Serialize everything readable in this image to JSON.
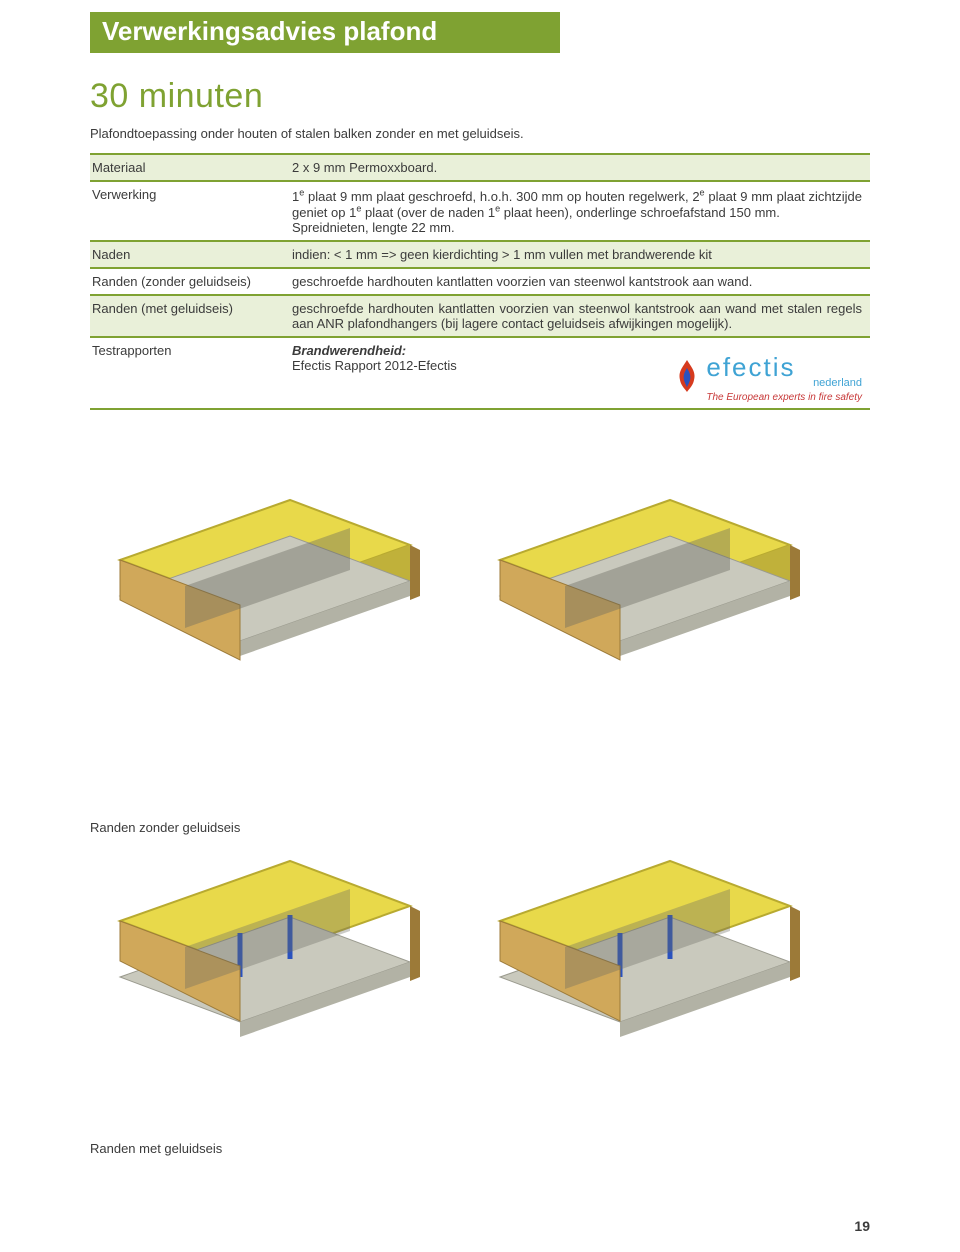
{
  "banner": "Verwerkingsadvies plafond",
  "heading": "30 minuten",
  "intro": "Plafondtoepassing onder houten of stalen balken zonder en met geluidseis.",
  "table": {
    "rows": [
      {
        "k": "Materiaal",
        "v": "2 x 9 mm Permoxxboard.",
        "hl": true
      },
      {
        "k": "Verwerking",
        "v": "1ᵉ plaat 9 mm plaat geschroefd, h.o.h. 300 mm op houten regelwerk, 2ᵉ plaat 9 mm plaat zichtzijde geniet op 1ᵉ plaat (over de naden 1ᵉ plaat heen), onderlinge schroefafstand 150 mm.\nSpreidnieten, lengte 22 mm.",
        "hl": false
      },
      {
        "k": "Naden",
        "v": "indien: < 1 mm => geen kierdichting > 1 mm vullen met brandwerende kit",
        "hl": true
      },
      {
        "k": "Randen (zonder geluidseis)",
        "v": "geschroefde hardhouten kantlatten voorzien van steenwol kantstrook aan wand.",
        "hl": false
      },
      {
        "k": "Randen (met geluidseis)",
        "v": "geschroefde hardhouten kantlatten voorzien van steenwol kantstrook aan wand met stalen regels aan ANR plafondhangers (bij lagere contact geluidseis afwijkingen mogelijk).",
        "hl": true
      },
      {
        "k": "Testrapporten",
        "v": "",
        "hl": false
      }
    ],
    "test_label": "Brandwerendheid:",
    "test_report": "Efectis Rapport 2012-Efectis"
  },
  "logo": {
    "name": "efectis",
    "region": "nederland",
    "tagline": "The European experts in fire safety"
  },
  "section1": "Randen zonder geluidseis",
  "section2": "Randen met geluidseis",
  "pagenum": "19",
  "colors": {
    "green": "#7fa232",
    "highlight": "#e9f0d9",
    "logo_blue": "#3fa3d4",
    "logo_red": "#c73838",
    "insulation": "#e8d94a",
    "board": "#c9c9bd",
    "wood": "#d0a85a",
    "wood_dark": "#9c7a38",
    "fastener": "#2a52be"
  }
}
